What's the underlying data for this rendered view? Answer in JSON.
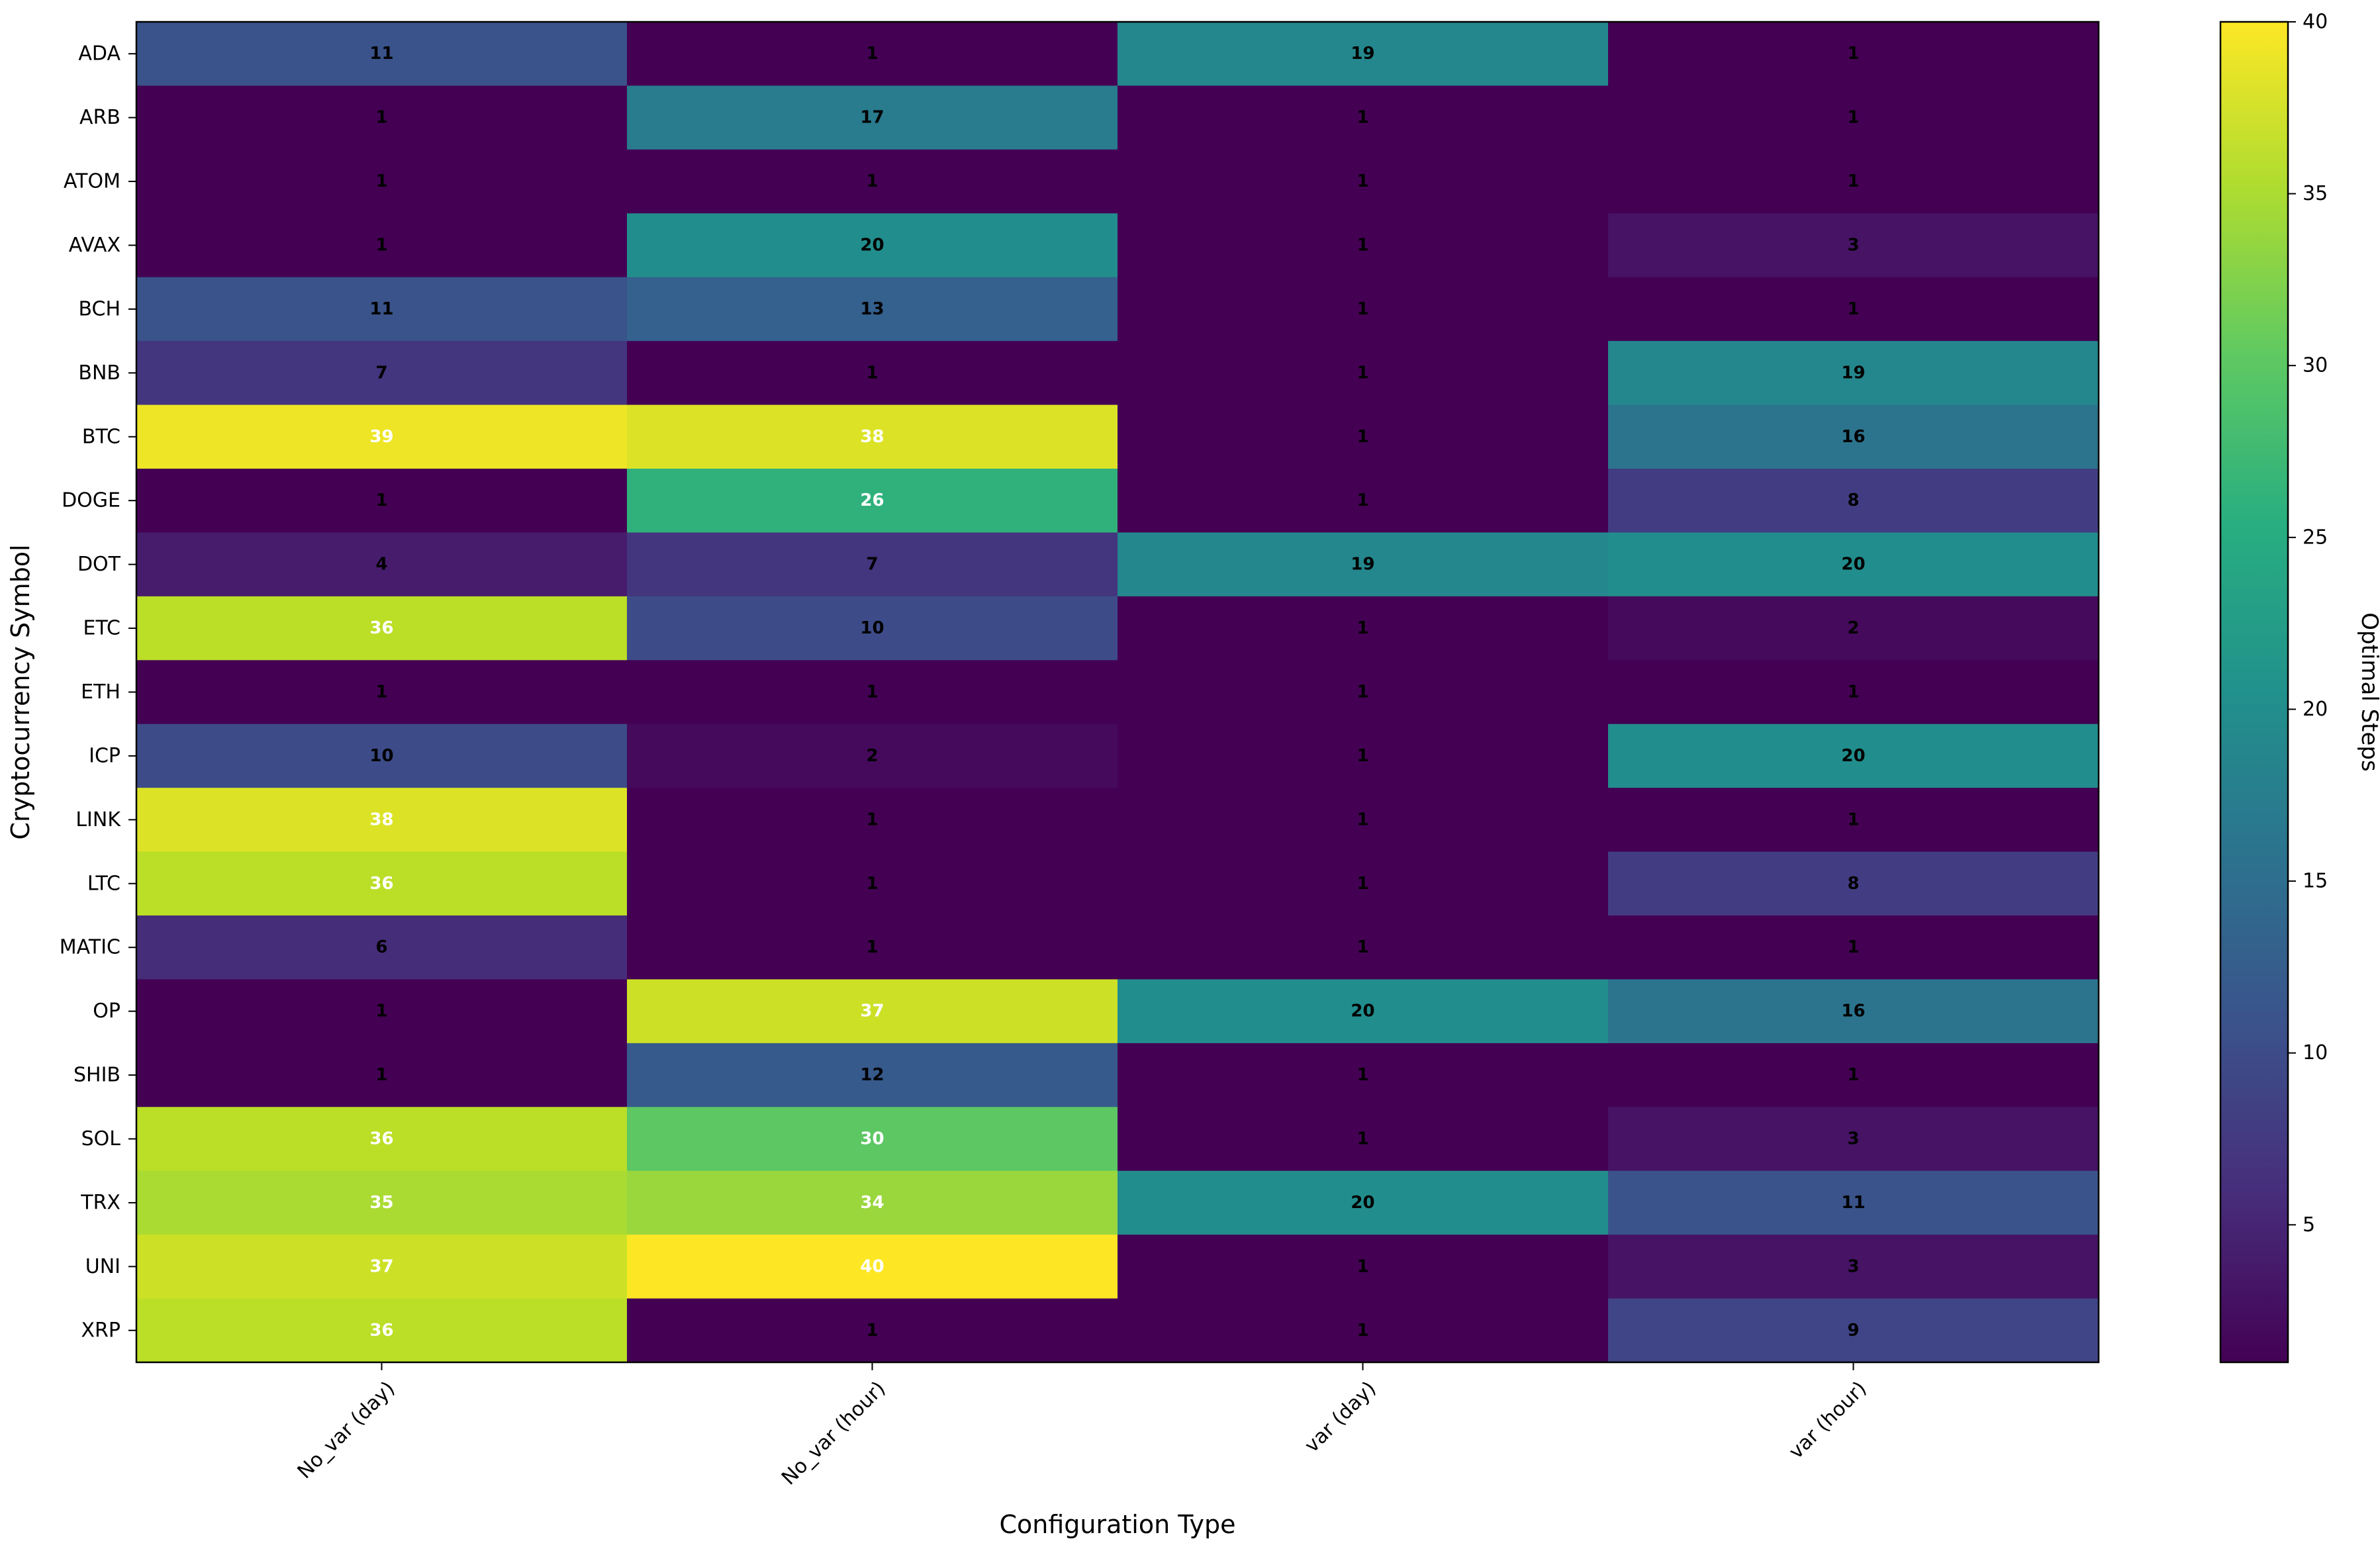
{
  "chart_data": {
    "type": "heatmap",
    "xlabel": "Configuration Type",
    "ylabel": "Cryptocurrency Symbol",
    "x_categories": [
      "No_var (day)",
      "No_var (hour)",
      "var (day)",
      "var (hour)"
    ],
    "y_categories": [
      "ADA",
      "ARB",
      "ATOM",
      "AVAX",
      "BCH",
      "BNB",
      "BTC",
      "DOGE",
      "DOT",
      "ETC",
      "ETH",
      "ICP",
      "LINK",
      "LTC",
      "MATIC",
      "OP",
      "SHIB",
      "SOL",
      "TRX",
      "UNI",
      "XRP"
    ],
    "values": [
      [
        11,
        1,
        19,
        1
      ],
      [
        1,
        17,
        1,
        1
      ],
      [
        1,
        1,
        1,
        1
      ],
      [
        1,
        20,
        1,
        3
      ],
      [
        11,
        13,
        1,
        1
      ],
      [
        7,
        1,
        1,
        19
      ],
      [
        39,
        38,
        1,
        16
      ],
      [
        1,
        26,
        1,
        8
      ],
      [
        4,
        7,
        19,
        20
      ],
      [
        36,
        10,
        1,
        2
      ],
      [
        1,
        1,
        1,
        1
      ],
      [
        10,
        2,
        1,
        20
      ],
      [
        38,
        1,
        1,
        1
      ],
      [
        36,
        1,
        1,
        8
      ],
      [
        6,
        1,
        1,
        1
      ],
      [
        1,
        37,
        20,
        16
      ],
      [
        1,
        12,
        1,
        1
      ],
      [
        36,
        30,
        1,
        3
      ],
      [
        35,
        34,
        20,
        11
      ],
      [
        37,
        40,
        1,
        3
      ],
      [
        36,
        1,
        1,
        9
      ]
    ],
    "colormap": "viridis",
    "colorbar": {
      "label": "Optimal Steps",
      "range": [
        1,
        40
      ],
      "ticks": [
        5,
        10,
        15,
        20,
        25,
        30,
        35,
        40
      ]
    },
    "annotation_colors": {
      "dark_cell": "#000000",
      "bright_cell": "#ffffff"
    }
  }
}
